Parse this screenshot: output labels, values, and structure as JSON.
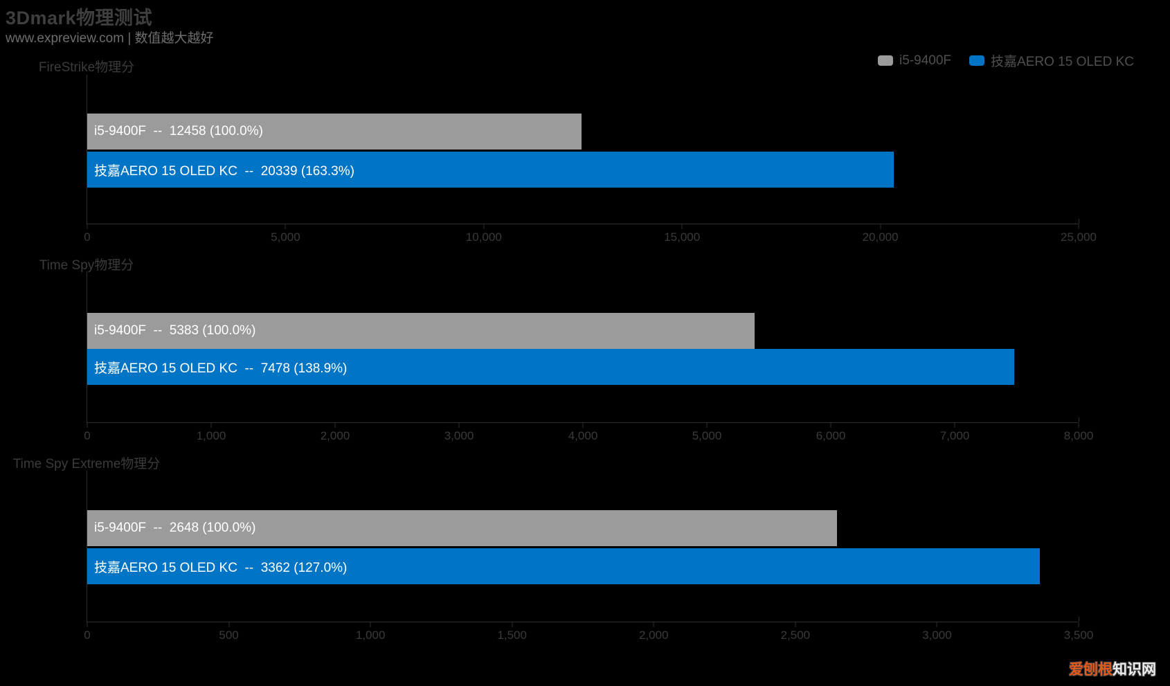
{
  "page": {
    "title": "3Dmark物理测试",
    "subtitle": "www.expreview.com | 数值越大越好",
    "watermark": {
      "highlight": "爱刨根",
      "rest": "知识网"
    }
  },
  "colors": {
    "background": "#000000",
    "series_gray": "#9b9b9b",
    "series_blue": "#0074c5",
    "bar_text": "#ffffff",
    "axis": "#2e2e2e",
    "muted_text": "#3b3b3b"
  },
  "legend": [
    {
      "label": "i5-9400F",
      "color": "#9b9b9b"
    },
    {
      "label": "技嘉AERO 15 OLED KC",
      "color": "#0074c5"
    }
  ],
  "chart_data": [
    {
      "type": "bar",
      "orientation": "horizontal",
      "title": "FireStrike物理分",
      "xlim": [
        0,
        25000
      ],
      "x_ticks": [
        0,
        5000,
        10000,
        15000,
        20000,
        25000
      ],
      "x_tick_labels": [
        "0",
        "5,000",
        "10,000",
        "15,000",
        "20,000",
        "25,000"
      ],
      "grid": false,
      "series": [
        {
          "name": "i5-9400F",
          "value": 12458,
          "percent": 100.0,
          "color": "#9b9b9b",
          "bar_label": "i5-9400F  --  12458 (100.0%)"
        },
        {
          "name": "技嘉AERO 15 OLED KC",
          "value": 20339,
          "percent": 163.3,
          "color": "#0074c5",
          "bar_label": "技嘉AERO 15 OLED KC  --  20339 (163.3%)"
        }
      ]
    },
    {
      "type": "bar",
      "orientation": "horizontal",
      "title": "Time Spy物理分",
      "xlim": [
        0,
        8000
      ],
      "x_ticks": [
        0,
        1000,
        2000,
        3000,
        4000,
        5000,
        6000,
        7000,
        8000
      ],
      "x_tick_labels": [
        "0",
        "1,000",
        "2,000",
        "3,000",
        "4,000",
        "5,000",
        "6,000",
        "7,000",
        "8,000"
      ],
      "grid": false,
      "series": [
        {
          "name": "i5-9400F",
          "value": 5383,
          "percent": 100.0,
          "color": "#9b9b9b",
          "bar_label": "i5-9400F  --  5383 (100.0%)"
        },
        {
          "name": "技嘉AERO 15 OLED KC",
          "value": 7478,
          "percent": 138.9,
          "color": "#0074c5",
          "bar_label": "技嘉AERO 15 OLED KC  --  7478 (138.9%)"
        }
      ]
    },
    {
      "type": "bar",
      "orientation": "horizontal",
      "title": "Time Spy Extreme物理分",
      "xlim": [
        0,
        3500
      ],
      "x_ticks": [
        0,
        500,
        1000,
        1500,
        2000,
        2500,
        3000,
        3500
      ],
      "x_tick_labels": [
        "0",
        "500",
        "1,000",
        "1,500",
        "2,000",
        "2,500",
        "3,000",
        "3,500"
      ],
      "grid": false,
      "series": [
        {
          "name": "i5-9400F",
          "value": 2648,
          "percent": 100.0,
          "color": "#9b9b9b",
          "bar_label": "i5-9400F  --  2648 (100.0%)"
        },
        {
          "name": "技嘉AERO 15 OLED KC",
          "value": 3362,
          "percent": 127.0,
          "color": "#0074c5",
          "bar_label": "技嘉AERO 15 OLED KC  --  3362 (127.0%)"
        }
      ]
    }
  ]
}
